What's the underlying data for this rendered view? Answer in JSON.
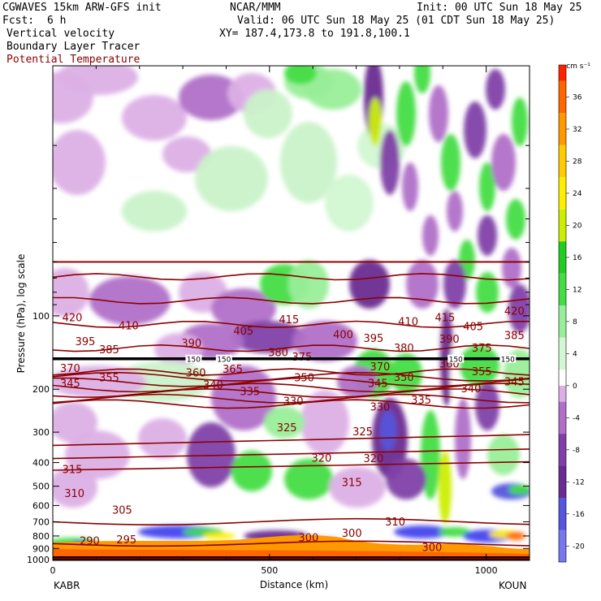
{
  "header": {
    "model": "CGWAVES 15km ARW-GFS init",
    "fcst_label": "Fcst:",
    "fcst_value": "6 h",
    "org": "NCAR/MMM",
    "init": "Init: 00 UTC Sun 18 May 25",
    "valid": "Valid: 06 UTC Sun 18 May 25 (01 CDT Sun 18 May 25)",
    "xy": "XY= 187.4,173.8 to 191.8,100.1",
    "field1": "Vertical velocity",
    "field2": "Boundary Layer Tracer",
    "field3": "Potential Temperature"
  },
  "colors": {
    "theta": "#8b0000",
    "tracer": "#000000"
  },
  "chart_data": {
    "type": "heatmap",
    "title": "Vertical velocity / Boundary Layer Tracer / Potential Temperature",
    "xlabel": "Distance (km)",
    "ylabel": "Pressure (hPa), log scale",
    "y_scale": "log",
    "xlim": [
      0,
      1100
    ],
    "ylim": [
      1000,
      10
    ],
    "x_ticks": [
      "0",
      "500",
      "1000"
    ],
    "y_ticks": [
      "100",
      "200",
      "300",
      "400",
      "500",
      "600",
      "700",
      "800",
      "900",
      "1000"
    ],
    "x_endpoints": [
      "KABR",
      "KOUN"
    ],
    "colorbar": {
      "unit": "cm s⁻¹",
      "ticks": [
        "36",
        "32",
        "28",
        "24",
        "20",
        "16",
        "12",
        "8",
        "4",
        "0",
        "-4",
        "-8",
        "-12",
        "-16",
        "-20"
      ],
      "range": [
        -22,
        40
      ]
    },
    "theta_labels": [
      {
        "text": "420",
        "x": 45,
        "p": 102
      },
      {
        "text": "410",
        "x": 175,
        "p": 110
      },
      {
        "text": "395",
        "x": 75,
        "p": 128
      },
      {
        "text": "385",
        "x": 130,
        "p": 138
      },
      {
        "text": "390",
        "x": 320,
        "p": 130
      },
      {
        "text": "405",
        "x": 440,
        "p": 116
      },
      {
        "text": "415",
        "x": 545,
        "p": 104
      },
      {
        "text": "400",
        "x": 670,
        "p": 120
      },
      {
        "text": "395",
        "x": 740,
        "p": 124
      },
      {
        "text": "410",
        "x": 820,
        "p": 106
      },
      {
        "text": "415",
        "x": 905,
        "p": 102
      },
      {
        "text": "420",
        "x": 1065,
        "p": 96
      },
      {
        "text": "405",
        "x": 970,
        "p": 111
      },
      {
        "text": "385",
        "x": 1065,
        "p": 121
      },
      {
        "text": "390",
        "x": 915,
        "p": 125
      },
      {
        "text": "375",
        "x": 990,
        "p": 136
      },
      {
        "text": "380",
        "x": 810,
        "p": 136
      },
      {
        "text": "380",
        "x": 520,
        "p": 142
      },
      {
        "text": "375",
        "x": 575,
        "p": 148
      },
      {
        "text": "370",
        "x": 40,
        "p": 165
      },
      {
        "text": "360",
        "x": 330,
        "p": 172
      },
      {
        "text": "365",
        "x": 415,
        "p": 166
      },
      {
        "text": "355",
        "x": 130,
        "p": 180
      },
      {
        "text": "350",
        "x": 580,
        "p": 180
      },
      {
        "text": "370",
        "x": 755,
        "p": 162
      },
      {
        "text": "360",
        "x": 915,
        "p": 158
      },
      {
        "text": "355",
        "x": 990,
        "p": 170
      },
      {
        "text": "350",
        "x": 810,
        "p": 179
      },
      {
        "text": "345",
        "x": 750,
        "p": 190
      },
      {
        "text": "345",
        "x": 1065,
        "p": 187
      },
      {
        "text": "345",
        "x": 40,
        "p": 190
      },
      {
        "text": "340",
        "x": 370,
        "p": 193
      },
      {
        "text": "335",
        "x": 455,
        "p": 205
      },
      {
        "text": "340",
        "x": 965,
        "p": 200
      },
      {
        "text": "330",
        "x": 555,
        "p": 225
      },
      {
        "text": "330",
        "x": 755,
        "p": 237
      },
      {
        "text": "335",
        "x": 850,
        "p": 222
      },
      {
        "text": "325",
        "x": 540,
        "p": 288
      },
      {
        "text": "325",
        "x": 715,
        "p": 300
      },
      {
        "text": "320",
        "x": 620,
        "p": 384
      },
      {
        "text": "320",
        "x": 740,
        "p": 386
      },
      {
        "text": "315",
        "x": 45,
        "p": 428
      },
      {
        "text": "315",
        "x": 690,
        "p": 484
      },
      {
        "text": "310",
        "x": 50,
        "p": 537
      },
      {
        "text": "305",
        "x": 160,
        "p": 628
      },
      {
        "text": "310",
        "x": 790,
        "p": 702
      },
      {
        "text": "300",
        "x": 690,
        "p": 782
      },
      {
        "text": "300",
        "x": 590,
        "p": 815
      },
      {
        "text": "300",
        "x": 875,
        "p": 893
      },
      {
        "text": "295",
        "x": 170,
        "p": 833
      },
      {
        "text": "290",
        "x": 85,
        "p": 840
      }
    ],
    "tracer_labels": [
      {
        "text": "150",
        "x": 325,
        "p": 150
      },
      {
        "text": "150",
        "x": 395,
        "p": 150
      },
      {
        "text": "150",
        "x": 1050,
        "p": 150
      },
      {
        "text": "150",
        "x": 930,
        "p": 150
      }
    ]
  }
}
